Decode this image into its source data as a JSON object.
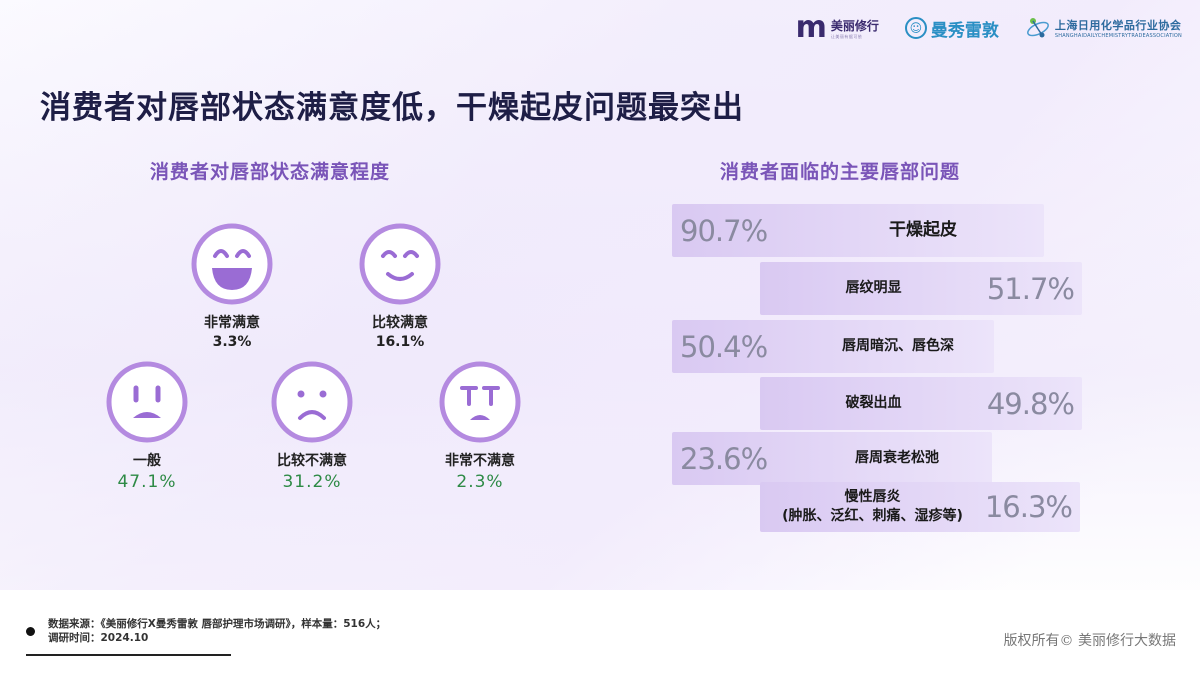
{
  "logos": {
    "brand1_mark": "m",
    "brand1_name": "美丽修行",
    "brand1_sub": "让美丽有据可依",
    "brand2_name": "曼秀雷敦",
    "brand3_name": "上海日用化学品行业协会",
    "brand3_sub": "SHANGHAIDAILYCHEMISTRYTRADEASSOCIATION"
  },
  "title": "消费者对唇部状态满意度低，干燥起皮问题最突出",
  "left_panel": {
    "subtitle": "消费者对唇部状态满意程度"
  },
  "right_panel": {
    "subtitle": "消费者面临的主要唇部问题"
  },
  "chart_data": [
    {
      "type": "pictogram",
      "title": "消费者对唇部状态满意程度",
      "categories": [
        "非常满意",
        "比较满意",
        "一般",
        "比较不满意",
        "非常不满意"
      ],
      "values": [
        3.3,
        16.1,
        47.1,
        31.2,
        2.3
      ],
      "value_labels": [
        "3.3%",
        "16.1%",
        "47.1%",
        "31.2%",
        "2.3%"
      ],
      "icons": [
        "very-happy-face-icon",
        "smiling-face-icon",
        "sad-face-icon",
        "frowning-face-icon",
        "crying-face-icon"
      ],
      "unit": "%"
    },
    {
      "type": "bar",
      "orientation": "horizontal",
      "title": "消费者面临的主要唇部问题",
      "categories": [
        "干燥起皮",
        "唇纹明显",
        "唇周暗沉、唇色深",
        "破裂出血",
        "唇周衰老松弛",
        "慢性唇炎\n(肿胀、泛红、刺痛、湿疹等)"
      ],
      "values": [
        90.7,
        51.7,
        50.4,
        49.8,
        23.6,
        16.3
      ],
      "value_labels": [
        "90.7%",
        "51.7%",
        "50.4%",
        "49.8%",
        "23.6%",
        "16.3%"
      ],
      "colors": {
        "bar": "#d9c9f2",
        "bar_end": "#ece4fa",
        "value_text": "#8a8aa0"
      },
      "unit": "%"
    }
  ],
  "footer": {
    "source": "数据来源：《美丽修行X曼秀雷敦 唇部护理市场调研》，样本量：516人；",
    "survey_time": "调研时间：2024.10",
    "copyright": "版权所有© 美丽修行大数据"
  },
  "colors": {
    "face_stroke": "#b48ae0",
    "face_mouth_fill": "#9a6cd4",
    "title": "#1e1e46",
    "subtitle": "#7a55b8",
    "green_value": "#2e8a46"
  }
}
